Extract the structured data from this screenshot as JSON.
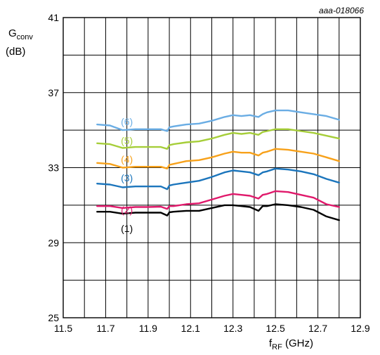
{
  "chart_data": {
    "type": "line",
    "figure_id": "aaa-018066",
    "ylabel": {
      "main": "G",
      "sub": "conv",
      "unit": "(dB)"
    },
    "xlabel": {
      "main": "f",
      "sub": "RF",
      "unit": " (GHz)"
    },
    "xlim": [
      11.5,
      12.9
    ],
    "ylim": [
      25,
      41
    ],
    "xticks": [
      {
        "value": 11.5,
        "label": "11.5"
      },
      {
        "value": 11.7,
        "label": "11.7"
      },
      {
        "value": 11.9,
        "label": "11.9"
      },
      {
        "value": 12.1,
        "label": "12.1"
      },
      {
        "value": 12.3,
        "label": "12.3"
      },
      {
        "value": 12.5,
        "label": "12.5"
      },
      {
        "value": 12.7,
        "label": "12.7"
      },
      {
        "value": 12.9,
        "label": "12.9"
      }
    ],
    "yticks": [
      {
        "value": 25,
        "label": "25"
      },
      {
        "value": 29,
        "label": "29"
      },
      {
        "value": 33,
        "label": "33"
      },
      {
        "value": 37,
        "label": "37"
      },
      {
        "value": 41,
        "label": "41"
      }
    ],
    "grid": {
      "x_step": 0.1,
      "y_step": 2,
      "shown": true
    },
    "series": [
      {
        "name": "(1)",
        "color": "#000000",
        "label_at": [
          11.8,
          29.75
        ],
        "x": [
          11.66,
          11.72,
          11.78,
          11.84,
          11.9,
          11.96,
          11.99,
          12.0,
          12.02,
          12.08,
          12.14,
          12.2,
          12.26,
          12.3,
          12.34,
          12.38,
          12.42,
          12.44,
          12.46,
          12.5,
          12.56,
          12.62,
          12.68,
          12.74,
          12.8
        ],
        "y": [
          30.65,
          30.65,
          30.55,
          30.6,
          30.6,
          30.6,
          30.45,
          30.62,
          30.65,
          30.7,
          30.7,
          30.85,
          31.0,
          31.0,
          30.95,
          30.9,
          30.7,
          30.95,
          30.95,
          31.05,
          31.0,
          30.9,
          30.75,
          30.4,
          30.2
        ]
      },
      {
        "name": "(2)",
        "color": "#e0196b",
        "label_at": [
          11.8,
          30.75
        ],
        "x": [
          11.66,
          11.72,
          11.78,
          11.84,
          11.9,
          11.96,
          11.99,
          12.0,
          12.02,
          12.08,
          12.14,
          12.2,
          12.26,
          12.3,
          12.34,
          12.38,
          12.42,
          12.44,
          12.46,
          12.5,
          12.56,
          12.62,
          12.68,
          12.74,
          12.8
        ],
        "y": [
          30.95,
          30.95,
          30.85,
          30.9,
          30.9,
          30.92,
          30.8,
          30.95,
          30.95,
          31.05,
          31.1,
          31.3,
          31.5,
          31.6,
          31.55,
          31.5,
          31.35,
          31.55,
          31.6,
          31.75,
          31.7,
          31.55,
          31.4,
          31.05,
          30.9
        ]
      },
      {
        "name": "(3)",
        "color": "#1b75bc",
        "label_at": [
          11.8,
          32.45
        ],
        "x": [
          11.66,
          11.72,
          11.78,
          11.84,
          11.9,
          11.96,
          11.99,
          12.0,
          12.02,
          12.08,
          12.14,
          12.2,
          12.26,
          12.3,
          12.34,
          12.38,
          12.42,
          12.44,
          12.46,
          12.5,
          12.56,
          12.62,
          12.68,
          12.74,
          12.8
        ],
        "y": [
          32.15,
          32.1,
          31.95,
          32.0,
          32.0,
          32.0,
          31.85,
          32.05,
          32.1,
          32.2,
          32.3,
          32.5,
          32.75,
          32.85,
          32.8,
          32.75,
          32.6,
          32.75,
          32.8,
          32.95,
          32.9,
          32.8,
          32.65,
          32.4,
          32.2
        ]
      },
      {
        "name": "(4)",
        "color": "#f7a11a",
        "label_at": [
          11.8,
          33.45
        ],
        "x": [
          11.66,
          11.72,
          11.78,
          11.84,
          11.9,
          11.96,
          11.99,
          12.0,
          12.02,
          12.08,
          12.14,
          12.2,
          12.26,
          12.3,
          12.34,
          12.38,
          12.42,
          12.44,
          12.46,
          12.5,
          12.56,
          12.62,
          12.68,
          12.74,
          12.8
        ],
        "y": [
          33.25,
          33.2,
          33.0,
          33.05,
          33.05,
          33.05,
          32.95,
          33.15,
          33.2,
          33.35,
          33.4,
          33.55,
          33.75,
          33.85,
          33.8,
          33.8,
          33.65,
          33.8,
          33.85,
          34.0,
          33.95,
          33.85,
          33.75,
          33.55,
          33.35
        ]
      },
      {
        "name": "(5)",
        "color": "#a6ce39",
        "label_at": [
          11.8,
          34.45
        ],
        "x": [
          11.66,
          11.72,
          11.78,
          11.84,
          11.9,
          11.96,
          11.99,
          12.0,
          12.02,
          12.08,
          12.14,
          12.2,
          12.26,
          12.3,
          12.34,
          12.38,
          12.42,
          12.44,
          12.46,
          12.5,
          12.56,
          12.62,
          12.68,
          12.74,
          12.8
        ],
        "y": [
          34.3,
          34.25,
          34.05,
          34.1,
          34.1,
          34.1,
          34.0,
          34.2,
          34.25,
          34.35,
          34.4,
          34.55,
          34.75,
          34.85,
          34.8,
          34.85,
          34.75,
          34.9,
          34.95,
          35.05,
          35.05,
          34.95,
          34.85,
          34.7,
          34.55
        ]
      },
      {
        "name": "(6)",
        "color": "#6aade4",
        "label_at": [
          11.8,
          35.45
        ],
        "x": [
          11.66,
          11.72,
          11.78,
          11.84,
          11.9,
          11.96,
          11.99,
          12.0,
          12.02,
          12.08,
          12.14,
          12.2,
          12.26,
          12.3,
          12.34,
          12.38,
          12.42,
          12.44,
          12.46,
          12.5,
          12.56,
          12.62,
          12.68,
          12.74,
          12.8
        ],
        "y": [
          35.3,
          35.25,
          35.0,
          35.05,
          35.05,
          35.05,
          34.95,
          35.15,
          35.2,
          35.3,
          35.35,
          35.5,
          35.7,
          35.8,
          35.75,
          35.8,
          35.7,
          35.85,
          35.95,
          36.05,
          36.05,
          35.95,
          35.85,
          35.75,
          35.55
        ]
      }
    ]
  }
}
